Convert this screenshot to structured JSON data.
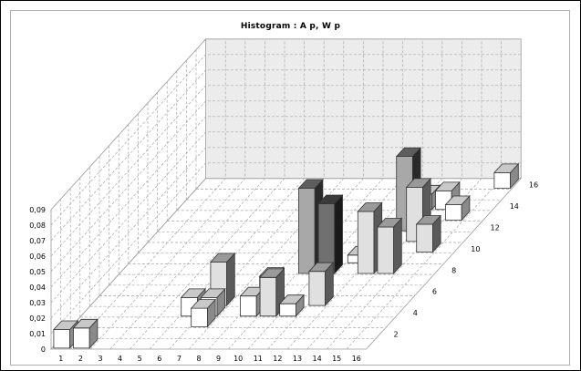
{
  "chart_data": {
    "type": "bar3d",
    "title": "Histogram :    A p,   W p",
    "x_ticks": [
      "1",
      "2",
      "3",
      "4",
      "5",
      "6",
      "7",
      "8",
      "9",
      "10",
      "11",
      "12",
      "13",
      "14",
      "15",
      "16"
    ],
    "z_ticks": [
      "2",
      "4",
      "6",
      "8",
      "10",
      "12",
      "14",
      "16"
    ],
    "y_ticks": [
      "0",
      "0,01",
      "0,02",
      "0,03",
      "0,04",
      "0,05",
      "0,06",
      "0,07",
      "0,08",
      "0,09"
    ],
    "ylim": [
      0,
      0.09
    ],
    "grid": true,
    "bars": [
      {
        "x": 1,
        "z": 1,
        "value": 0.012,
        "shade": "white"
      },
      {
        "x": 2,
        "z": 1,
        "value": 0.013,
        "shade": "white"
      },
      {
        "x": 6,
        "z": 4,
        "value": 0.012,
        "shade": "white"
      },
      {
        "x": 7,
        "z": 4,
        "value": 0.012,
        "shade": "white"
      },
      {
        "x": 7,
        "z": 5,
        "value": 0.028,
        "shade": "light"
      },
      {
        "x": 7,
        "z": 3,
        "value": 0.012,
        "shade": "white"
      },
      {
        "x": 9,
        "z": 4,
        "value": 0.013,
        "shade": "white"
      },
      {
        "x": 9,
        "z": 6,
        "value": 0.012,
        "shade": "white"
      },
      {
        "x": 10,
        "z": 4,
        "value": 0.025,
        "shade": "light"
      },
      {
        "x": 10,
        "z": 8,
        "value": 0.055,
        "shade": "mid"
      },
      {
        "x": 11,
        "z": 8,
        "value": 0.045,
        "shade": "dark"
      },
      {
        "x": 11,
        "z": 4,
        "value": 0.008,
        "shade": "white"
      },
      {
        "x": 12,
        "z": 5,
        "value": 0.022,
        "shade": "light"
      },
      {
        "x": 12,
        "z": 9,
        "value": 0.005,
        "shade": "white"
      },
      {
        "x": 13,
        "z": 8,
        "value": 0.04,
        "shade": "light"
      },
      {
        "x": 13,
        "z": 12,
        "value": 0.048,
        "shade": "mid"
      },
      {
        "x": 14,
        "z": 8,
        "value": 0.03,
        "shade": "light"
      },
      {
        "x": 14,
        "z": 11,
        "value": 0.035,
        "shade": "light"
      },
      {
        "x": 15,
        "z": 10,
        "value": 0.018,
        "shade": "light"
      },
      {
        "x": 15,
        "z": 13,
        "value": 0.01,
        "shade": "white"
      },
      {
        "x": 14,
        "z": 14,
        "value": 0.012,
        "shade": "white"
      },
      {
        "x": 13,
        "z": 14,
        "value": 0.01,
        "shade": "white"
      },
      {
        "x": 16,
        "z": 16,
        "value": 0.01,
        "shade": "white"
      }
    ]
  }
}
